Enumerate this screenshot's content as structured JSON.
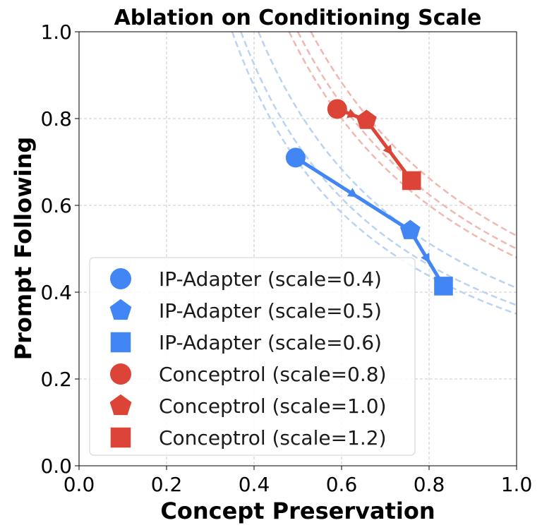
{
  "chart_data": {
    "type": "scatter",
    "title": "Ablation on Conditioning Scale",
    "xlabel": "Concept Preservation",
    "ylabel": "Prompt Following",
    "xlim": [
      0.0,
      1.0
    ],
    "ylim": [
      0.0,
      1.0
    ],
    "xticks": [
      "0.0",
      "0.2",
      "0.4",
      "0.6",
      "0.8",
      "1.0"
    ],
    "yticks": [
      "0.0",
      "0.2",
      "0.4",
      "0.6",
      "0.8",
      "1.0"
    ],
    "grid": true,
    "legend_position": "lower-left",
    "series": [
      {
        "name": "IP-Adapter",
        "color": "#4285F4",
        "contour_color": "#BBD3F2",
        "contour_k": [
          0.35,
          0.37,
          0.41
        ],
        "points": [
          {
            "x": 0.495,
            "y": 0.71,
            "marker": "circle",
            "label": "IP-Adapter (scale=0.4)"
          },
          {
            "x": 0.757,
            "y": 0.542,
            "marker": "pentagon",
            "label": "IP-Adapter (scale=0.5)"
          },
          {
            "x": 0.833,
            "y": 0.414,
            "marker": "square",
            "label": "IP-Adapter (scale=0.6)"
          }
        ]
      },
      {
        "name": "Conceptrol",
        "color": "#DB4437",
        "contour_color": "#F0B8B1",
        "contour_k": [
          0.48,
          0.5,
          0.53
        ],
        "points": [
          {
            "x": 0.59,
            "y": 0.822,
            "marker": "circle",
            "label": "Conceptrol (scale=0.8)"
          },
          {
            "x": 0.657,
            "y": 0.796,
            "marker": "pentagon",
            "label": "Conceptrol (scale=1.0)"
          },
          {
            "x": 0.76,
            "y": 0.657,
            "marker": "square",
            "label": "Conceptrol (scale=1.2)"
          }
        ]
      }
    ]
  }
}
